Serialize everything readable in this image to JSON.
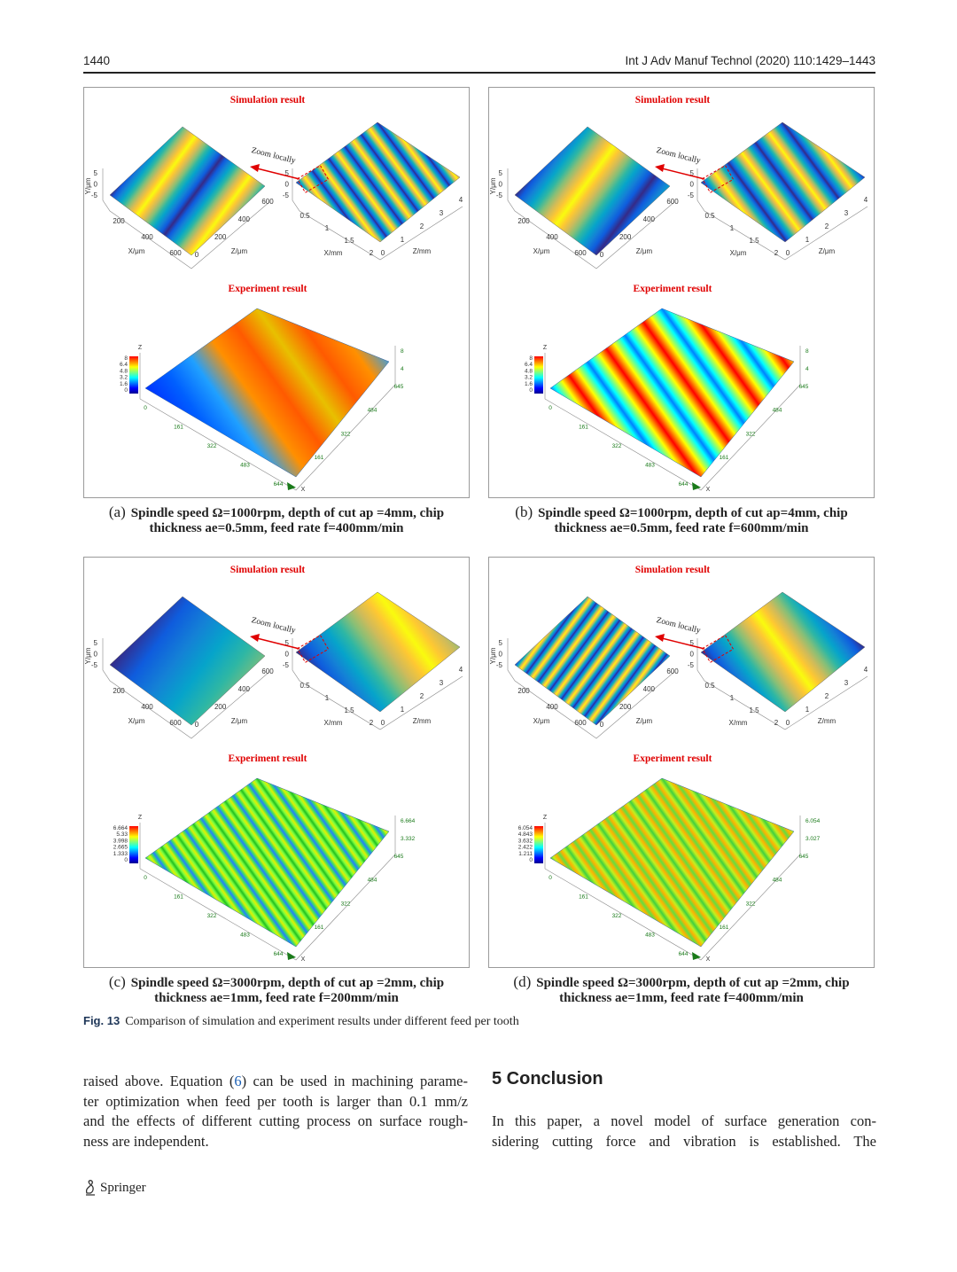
{
  "header": {
    "page_number": "1440",
    "journal": "Int J Adv Manuf Technol (2020) 110:1429–1443"
  },
  "figure": {
    "label": "Fig. 13",
    "caption": "Comparison of simulation and experiment results under different feed per tooth",
    "panels": [
      {
        "label": "(a)",
        "caption": [
          "Spindle speed Ω=1000rpm, depth of cut ap =4mm, chip",
          "thickness ae=0.5mm, feed rate f=400mm/min"
        ],
        "simulation_title": "Simulation result",
        "zoom_label": "Zoom locally",
        "experiment_title": "Experiment result",
        "sim_left": {
          "y_label": "Y/μm",
          "y_ticks": [
            5,
            0,
            -5
          ],
          "a_label": "X/μm",
          "a_ticks": [
            200,
            400,
            600
          ],
          "b_label": "Z/μm",
          "b_ticks": [
            0,
            200,
            400,
            600
          ]
        },
        "sim_right": {
          "y_ticks": [
            5,
            0,
            -5
          ],
          "a_label": "X/mm",
          "a_ticks": [
            0.5,
            1,
            1.5,
            2
          ],
          "b_label": "Z/mm",
          "b_ticks": [
            0,
            1,
            2,
            3,
            4
          ]
        },
        "exp": {
          "z_label": "Z",
          "scale_ticks": [
            8,
            6.4,
            4.8,
            3.2,
            1.6,
            0
          ],
          "side_ticks": [
            8,
            4
          ],
          "back_ticks": [
            645,
            484,
            322,
            161
          ],
          "front_ticks": [
            0,
            161,
            322,
            483,
            644
          ],
          "x_label": "X"
        }
      },
      {
        "label": "(b)",
        "caption": [
          "Spindle speed Ω=1000rpm, depth of cut ap=4mm, chip",
          "thickness ae=0.5mm, feed rate f=600mm/min"
        ],
        "simulation_title": "Simulation result",
        "zoom_label": "Zoom locally",
        "experiment_title": "Experiment result",
        "sim_left": {
          "y_label": "Y/μm",
          "y_ticks": [
            5,
            0,
            -5
          ],
          "a_label": "X/μm",
          "a_ticks": [
            200,
            400,
            600
          ],
          "b_label": "Z/μm",
          "b_ticks": [
            0,
            200,
            400,
            600
          ]
        },
        "sim_right": {
          "y_ticks": [
            5,
            0,
            -5
          ],
          "a_label": "X/μm",
          "a_ticks": [
            0.5,
            1,
            1.5,
            2
          ],
          "b_label": "Z/μm",
          "b_ticks": [
            0,
            1,
            2,
            3,
            4
          ]
        },
        "exp": {
          "z_label": "Z",
          "scale_ticks": [
            8,
            6.4,
            4.8,
            3.2,
            1.6,
            0
          ],
          "side_ticks": [
            8,
            4
          ],
          "back_ticks": [
            645,
            484,
            322,
            161
          ],
          "front_ticks": [
            0,
            161,
            322,
            483,
            644
          ],
          "x_label": "X"
        }
      },
      {
        "label": "(c)",
        "caption": [
          "Spindle speed Ω=3000rpm, depth of cut ap =2mm, chip",
          "thickness ae=1mm, feed rate f=200mm/min"
        ],
        "simulation_title": "Simulation result",
        "zoom_label": "Zoom locally",
        "experiment_title": "Experiment result",
        "sim_left": {
          "y_label": "Y/μm",
          "y_ticks": [
            5,
            0,
            -5
          ],
          "a_label": "X/μm",
          "a_ticks": [
            200,
            400,
            600
          ],
          "b_label": "Z/μm",
          "b_ticks": [
            0,
            200,
            400,
            600
          ]
        },
        "sim_right": {
          "y_ticks": [
            5,
            0,
            -5
          ],
          "a_label": "X/mm",
          "a_ticks": [
            0.5,
            1,
            1.5,
            2
          ],
          "b_label": "Z/mm",
          "b_ticks": [
            0,
            1,
            2,
            3,
            4
          ]
        },
        "exp": {
          "z_label": "Z",
          "scale_ticks": [
            6.664,
            5.33,
            3.998,
            2.665,
            1.333,
            0
          ],
          "side_ticks": [
            6.664,
            3.332
          ],
          "back_ticks": [
            645,
            484,
            322,
            161
          ],
          "front_ticks": [
            0,
            161,
            322,
            483,
            644
          ],
          "x_label": "X"
        }
      },
      {
        "label": "(d)",
        "caption": [
          "Spindle speed Ω=3000rpm, depth of cut ap =2mm, chip",
          "thickness ae=1mm, feed rate f=400mm/min"
        ],
        "simulation_title": "Simulation result",
        "zoom_label": "Zoom locally",
        "experiment_title": "Experiment result",
        "sim_left": {
          "y_label": "Y/μm",
          "y_ticks": [
            5,
            0,
            -5
          ],
          "a_label": "X/μm",
          "a_ticks": [
            200,
            400,
            600
          ],
          "b_label": "Z/μm",
          "b_ticks": [
            0,
            200,
            400,
            600
          ]
        },
        "sim_right": {
          "y_ticks": [
            5,
            0,
            -5
          ],
          "a_label": "X/mm",
          "a_ticks": [
            0.5,
            1,
            1.5,
            2
          ],
          "b_label": "Z/mm",
          "b_ticks": [
            0,
            1,
            2,
            3,
            4
          ]
        },
        "exp": {
          "z_label": "Z",
          "scale_ticks": [
            6.054,
            4.843,
            3.632,
            2.422,
            1.211,
            0
          ],
          "side_ticks": [
            6.054,
            3.027
          ],
          "back_ticks": [
            645,
            484,
            322,
            161
          ],
          "front_ticks": [
            0,
            161,
            322,
            483,
            644
          ],
          "x_label": "X"
        }
      }
    ]
  },
  "body": {
    "left_lines": [
      {
        "before": "raised above. Equation (",
        "reference": "6",
        "after": ") can be used in machining parame-"
      },
      "ter optimization when feed per tooth is larger than 0.1 mm/z",
      "and the effects of different cutting process on surface rough-",
      "ness are independent."
    ],
    "section_heading": "5 Conclusion",
    "right_lines": [
      "In this paper, a novel model of surface generation con-",
      "sidering cutting force and vibration is established. The"
    ]
  },
  "footer": {
    "publisher": "Springer"
  }
}
